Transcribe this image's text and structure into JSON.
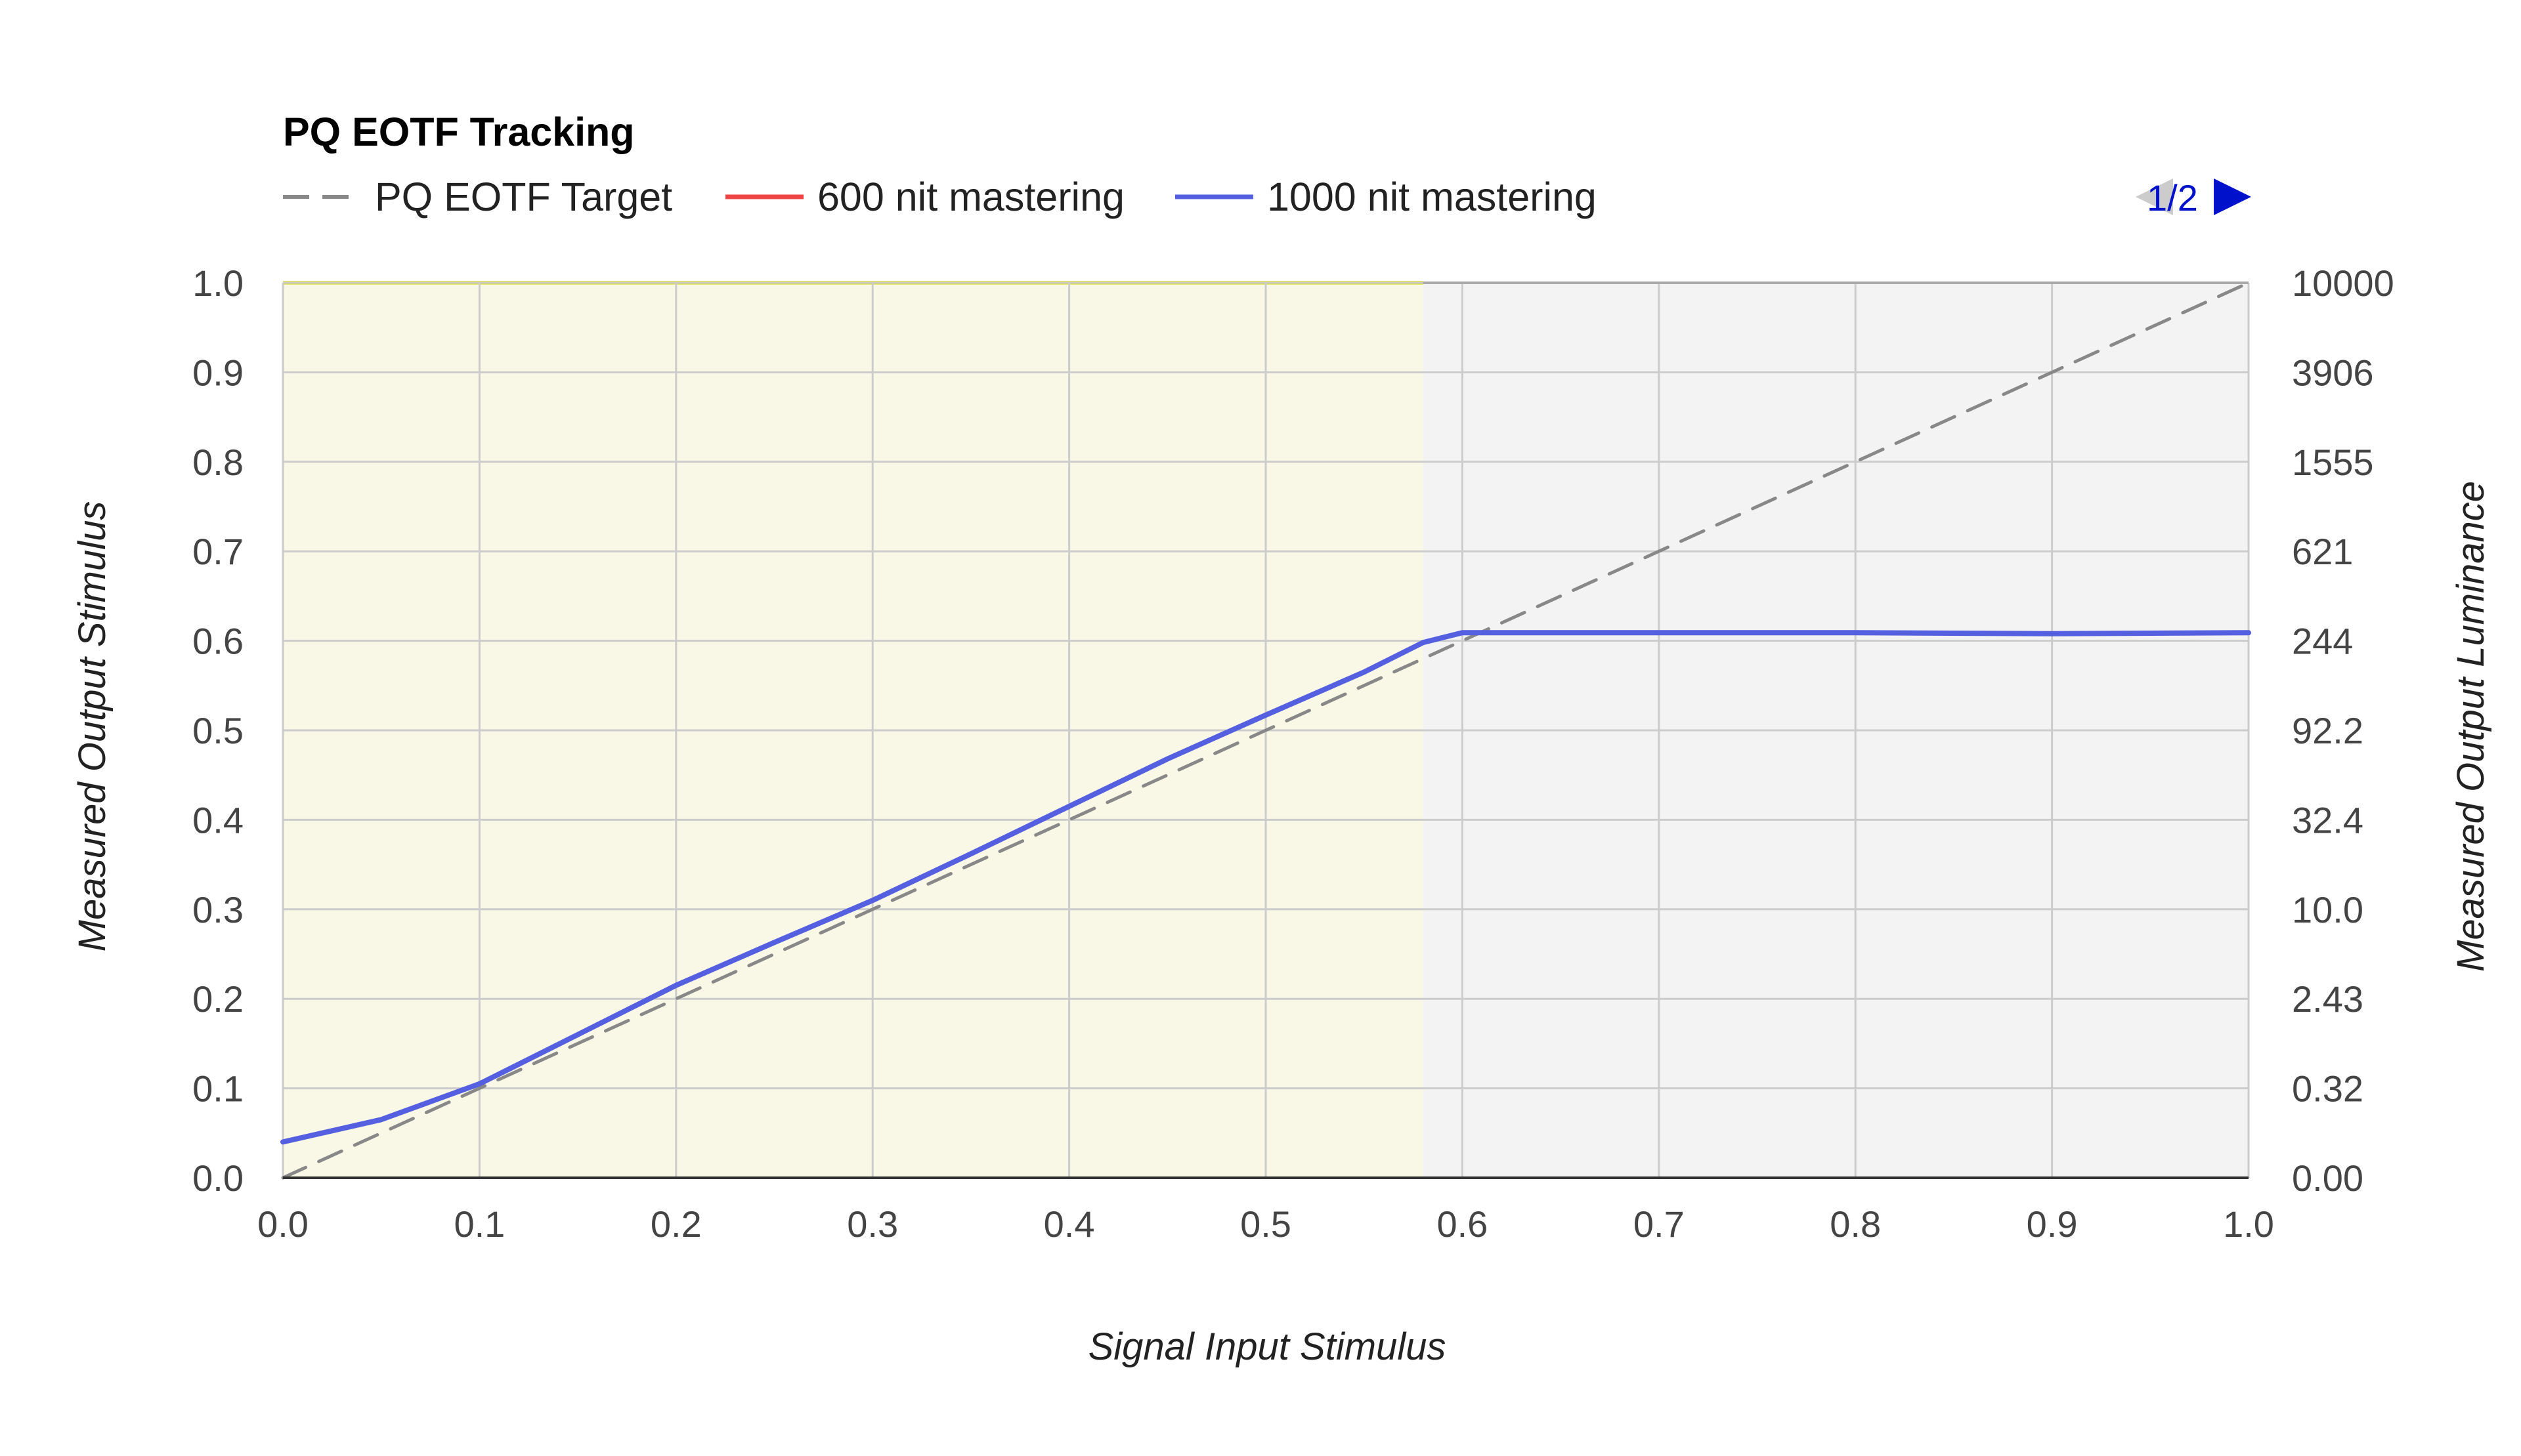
{
  "chart_data": {
    "type": "line",
    "title": "PQ EOTF Tracking",
    "xlabel": "Signal Input Stimulus",
    "ylabel": "Measured Output Stimulus",
    "y2label": "Measured Output Luminance",
    "xlim": [
      0,
      1
    ],
    "ylim": [
      0,
      1
    ],
    "grid": true,
    "legend_position": "top-left",
    "x_ticks": [
      "0.0",
      "0.1",
      "0.2",
      "0.3",
      "0.4",
      "0.5",
      "0.6",
      "0.7",
      "0.8",
      "0.9",
      "1.0"
    ],
    "y_ticks": [
      "0.0",
      "0.1",
      "0.2",
      "0.3",
      "0.4",
      "0.5",
      "0.6",
      "0.7",
      "0.8",
      "0.9",
      "1.0"
    ],
    "y2_ticks": [
      "0.00",
      "0.32",
      "2.43",
      "10.0",
      "32.4",
      "92.2",
      "244",
      "621",
      "1555",
      "3906",
      "10000"
    ],
    "highlight_region": {
      "x": [
        0,
        0.58
      ],
      "color": "#f9f8e6",
      "top_border_color": "#d4d400"
    },
    "series": [
      {
        "name": "PQ EOTF Target",
        "color": "#888888",
        "style": "dashed",
        "x": [
          0,
          1
        ],
        "y": [
          0,
          1
        ]
      },
      {
        "name": "600 nit mastering",
        "color": "#ee4444",
        "style": "solid",
        "x": [],
        "y": []
      },
      {
        "name": "1000 nit mastering",
        "color": "#5560e0",
        "style": "solid",
        "x": [
          0,
          0.05,
          0.1,
          0.15,
          0.2,
          0.25,
          0.3,
          0.35,
          0.4,
          0.45,
          0.5,
          0.55,
          0.58,
          0.6,
          0.7,
          0.8,
          0.9,
          1.0
        ],
        "y": [
          0.04,
          0.065,
          0.105,
          0.16,
          0.215,
          0.263,
          0.31,
          0.362,
          0.415,
          0.468,
          0.517,
          0.565,
          0.598,
          0.609,
          0.609,
          0.609,
          0.608,
          0.609
        ]
      }
    ]
  },
  "pager": {
    "label": "1/2"
  }
}
